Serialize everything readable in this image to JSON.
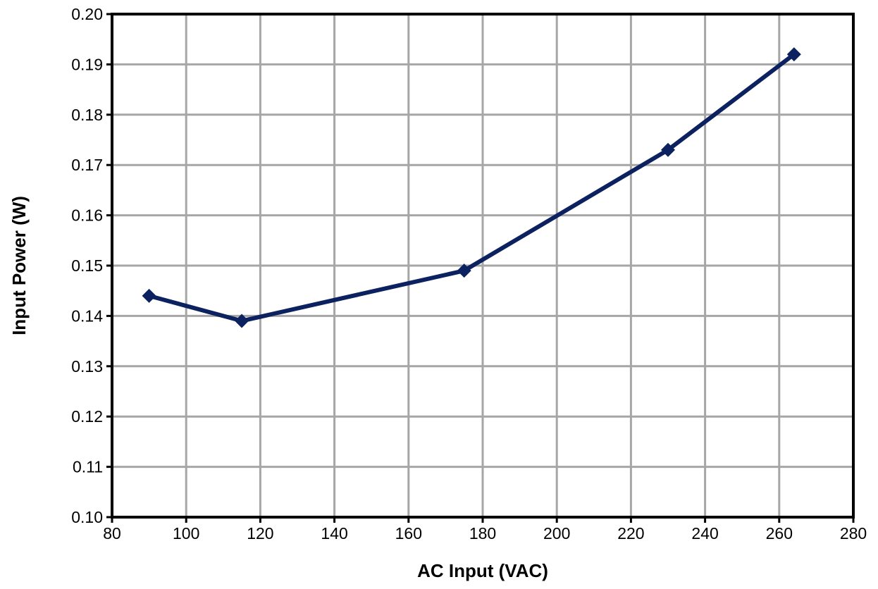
{
  "chart_data": {
    "type": "line",
    "title": "",
    "xlabel": "AC Input (VAC)",
    "ylabel": "Input Power (W)",
    "xlim": [
      80,
      280
    ],
    "ylim": [
      0.1,
      0.2
    ],
    "x_ticks": [
      "80",
      "100",
      "120",
      "140",
      "160",
      "180",
      "200",
      "220",
      "240",
      "260",
      "280"
    ],
    "y_ticks": [
      "0.10",
      "0.11",
      "0.12",
      "0.13",
      "0.14",
      "0.15",
      "0.16",
      "0.17",
      "0.18",
      "0.19",
      "0.20"
    ],
    "grid": true,
    "legend": "none",
    "series": [
      {
        "x": [
          90,
          115,
          175,
          230,
          264
        ],
        "y": [
          0.144,
          0.139,
          0.149,
          0.173,
          0.192
        ],
        "color": "#0b2160",
        "marker": "diamond"
      }
    ]
  }
}
